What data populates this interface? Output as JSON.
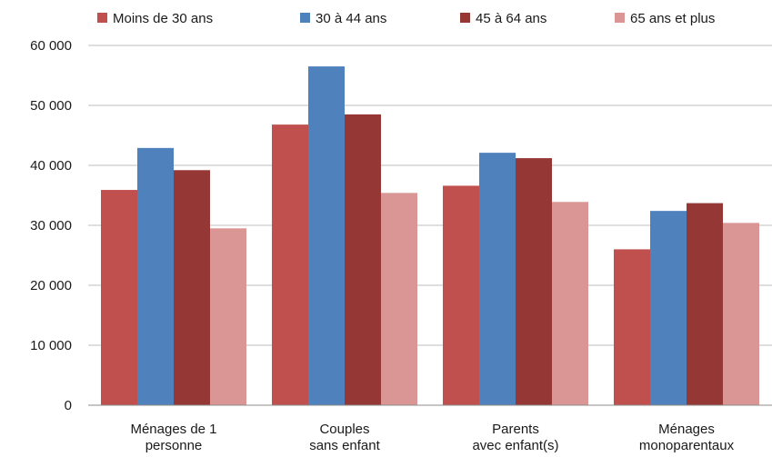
{
  "chart_data": {
    "type": "bar",
    "title": "",
    "xlabel": "",
    "ylabel": "",
    "categories": [
      [
        "Ménages de  1",
        "personne"
      ],
      [
        "Couples",
        "sans enfant"
      ],
      [
        "Parents",
        "avec enfant(s)"
      ],
      [
        "Ménages",
        "monoparentaux"
      ]
    ],
    "series": [
      {
        "name": "Moins de 30 ans",
        "color": "#c0504d",
        "values": [
          35900,
          46800,
          36600,
          26000
        ]
      },
      {
        "name": "30 à 44 ans",
        "color": "#4f81bd",
        "values": [
          42900,
          56500,
          42100,
          32400
        ]
      },
      {
        "name": "45 à 64 ans",
        "color": "#953735",
        "values": [
          39200,
          48500,
          41200,
          33700
        ]
      },
      {
        "name": "65 ans et plus",
        "color": "#d99694",
        "values": [
          29500,
          35400,
          33900,
          30400
        ]
      }
    ],
    "ylim": [
      0,
      60000
    ],
    "yticks": [
      0,
      10000,
      20000,
      30000,
      40000,
      50000,
      60000
    ],
    "ytick_labels": [
      "0",
      "10 000",
      "20 000",
      "30 000",
      "40 000",
      "50 000",
      "60 000"
    ],
    "grid": true,
    "legend_position": "top"
  }
}
